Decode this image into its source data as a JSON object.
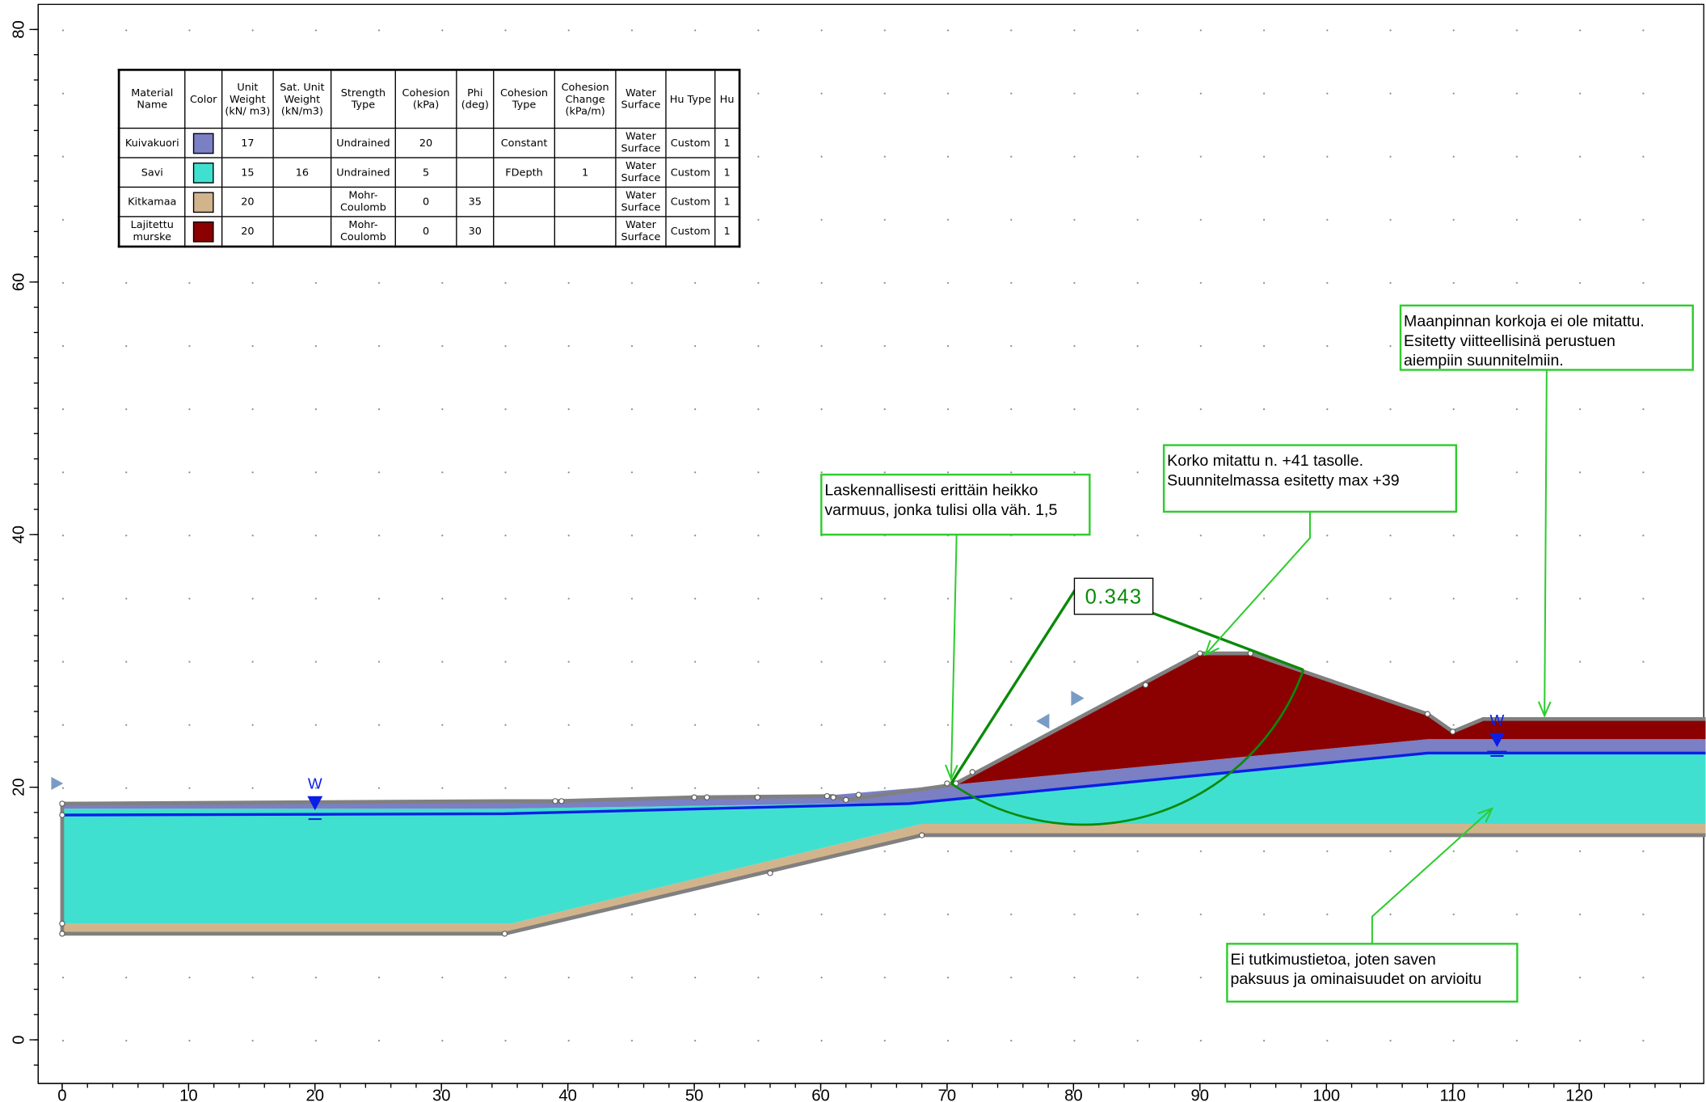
{
  "axes": {
    "xticks": [
      0,
      10,
      20,
      30,
      40,
      50,
      60,
      70,
      80,
      90,
      100,
      110,
      120
    ],
    "yticks": [
      0,
      20,
      40,
      60,
      80
    ]
  },
  "materials_table": {
    "headers": [
      "Material Name",
      "Color",
      "Unit Weight (kN/ m3)",
      "Sat. Unit Weight (kN/m3)",
      "Strength Type",
      "Cohesion (kPa)",
      "Phi (deg)",
      "Cohesion Type",
      "Cohesion Change (kPa/m)",
      "Water Surface",
      "Hu Type",
      "Hu"
    ],
    "rows": [
      {
        "name": "Kuivakuori",
        "color": "#7b7fc4",
        "cells": [
          17,
          null,
          "Undrained",
          20,
          null,
          "Constant",
          null,
          "Water Surface",
          "Custom",
          1
        ]
      },
      {
        "name": "Savi",
        "color": "#40e0d0",
        "cells": [
          15,
          16,
          "Undrained",
          5,
          null,
          "FDepth",
          1,
          "Water Surface",
          "Custom",
          1
        ]
      },
      {
        "name": "Kitkamaa",
        "color": "#d2b48c",
        "cells": [
          20,
          null,
          "Mohr-Coulomb",
          0,
          35,
          null,
          null,
          "Water Surface",
          "Custom",
          1
        ]
      },
      {
        "name": "Lajitettu murske",
        "color": "#8b0000",
        "cells": [
          20,
          null,
          "Mohr-Coulomb",
          0,
          30,
          null,
          null,
          "Water Surface",
          "Custom",
          1
        ]
      }
    ]
  },
  "factor_of_safety": "0.343",
  "water_labels": [
    "W",
    "W"
  ],
  "annotations": [
    {
      "lines": [
        "Laskennallisesti erittäin heikko",
        "varmuus, jonka tulisi olla väh. 1,5"
      ]
    },
    {
      "lines": [
        "Korko mitattu n. +41 tasolle.",
        "Suunnitelmassa esitetty max +39"
      ]
    },
    {
      "lines": [
        "Maanpinnan korkoja ei ole mitattu.",
        "Esitetty viitteellisinä perustuen",
        "aiempiin suunnitelmiin."
      ]
    },
    {
      "lines": [
        "Ei tutkimustietoa, joten saven",
        "paksuus ja ominaisuudet on arvioitu"
      ]
    }
  ]
}
